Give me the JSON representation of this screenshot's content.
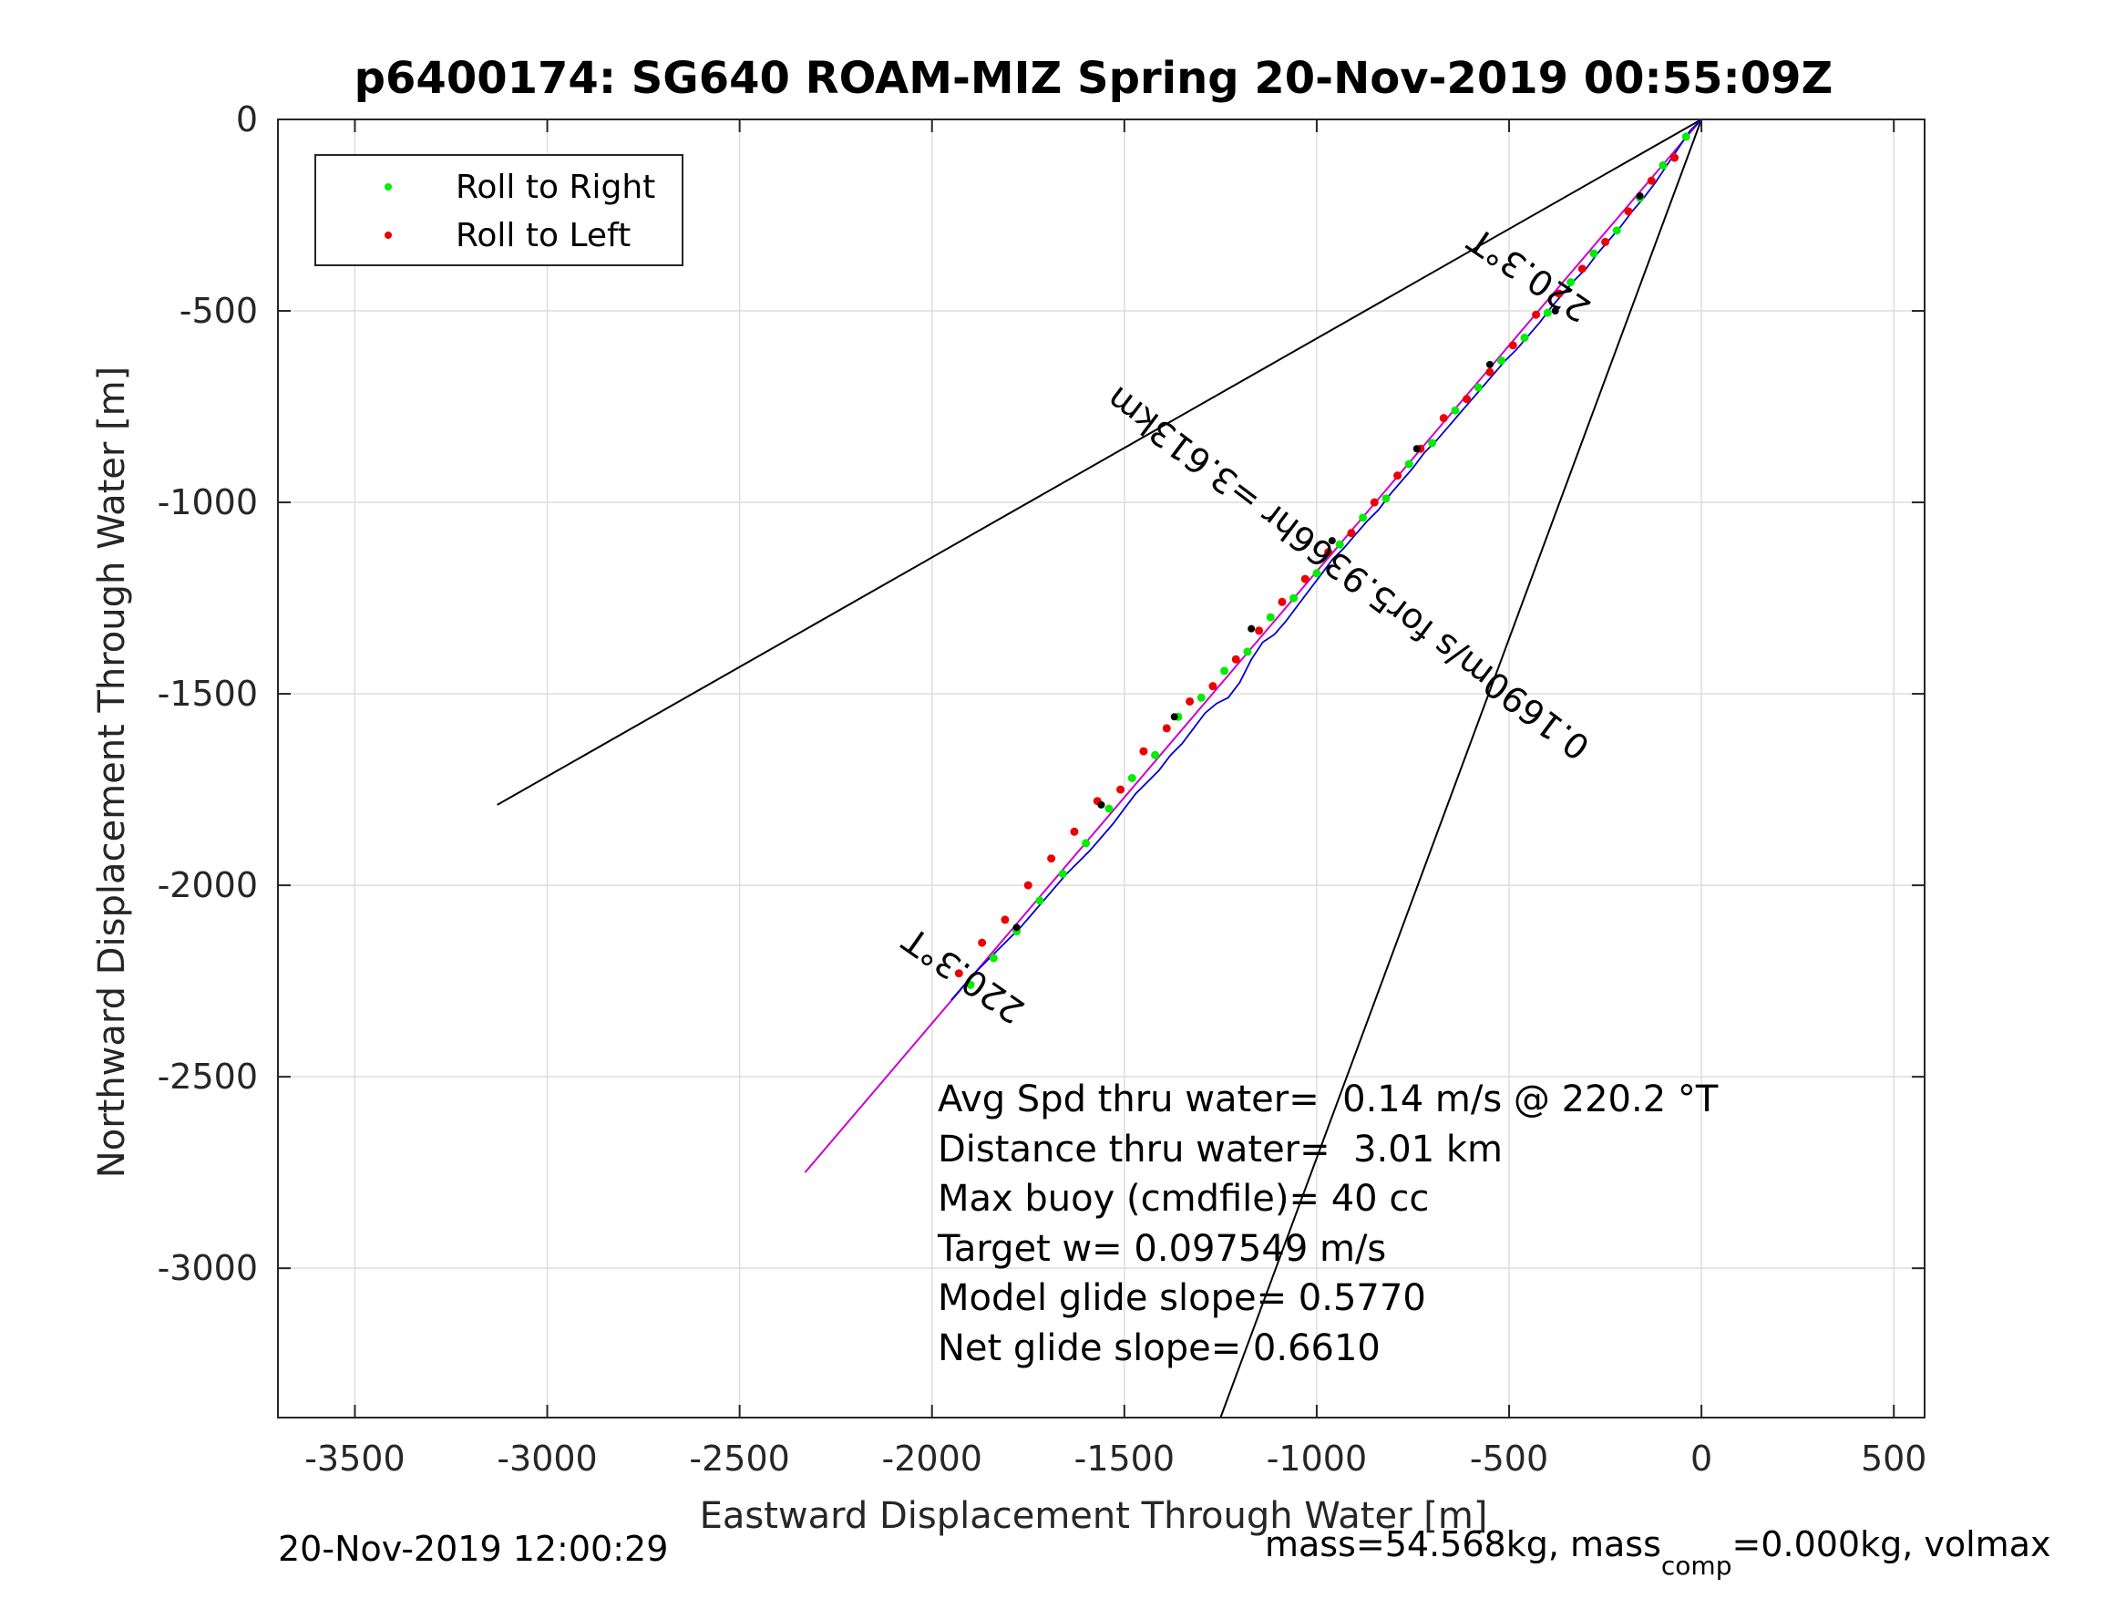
{
  "chart_data": {
    "type": "line",
    "title": "p6400174: SG640 ROAM-MIZ Spring 20-Nov-2019 00:55:09Z",
    "xlabel": "Eastward Displacement Through Water [m]",
    "ylabel": "Northward Displacement Through Water [m]",
    "xlim": [
      -3700,
      580
    ],
    "ylim": [
      -3390,
      0
    ],
    "x_ticks": [
      -3500,
      -3000,
      -2500,
      -2000,
      -1500,
      -1000,
      -500,
      0,
      500
    ],
    "y_ticks": [
      0,
      -500,
      -1000,
      -1500,
      -2000,
      -2500,
      -3000
    ],
    "grid": true,
    "legend": {
      "placement": "top-left",
      "entries": [
        {
          "label": "Roll to Right",
          "color": "#00ee00"
        },
        {
          "label": "Roll to Left",
          "color": "#ee0000"
        }
      ]
    },
    "colors": {
      "cone_lines": "#000000",
      "model_track": "#cc00cc",
      "measured_track": "#0000cc",
      "roll_right": "#00ee00",
      "roll_left": "#ee0000",
      "pitch_markers": "#000000"
    },
    "lines": [
      {
        "role": "cone-upper",
        "x": [
          0,
          -3130
        ],
        "y": [
          0,
          -1790
        ]
      },
      {
        "role": "cone-lower",
        "x": [
          0,
          -1250
        ],
        "y": [
          0,
          -3390
        ]
      },
      {
        "role": "model-track",
        "x": [
          0,
          -2330
        ],
        "y": [
          0,
          -2750
        ]
      }
    ],
    "track": {
      "x": [
        0,
        -30,
        -60,
        -90,
        -120,
        -150,
        -180,
        -210,
        -240,
        -270,
        -300,
        -330,
        -360,
        -390,
        -420,
        -450,
        -480,
        -510,
        -540,
        -570,
        -600,
        -630,
        -660,
        -690,
        -720,
        -750,
        -780,
        -810,
        -840,
        -870,
        -900,
        -930,
        -960,
        -990,
        -1020,
        -1050,
        -1080,
        -1110,
        -1140,
        -1170,
        -1200,
        -1230,
        -1260,
        -1290,
        -1320,
        -1350,
        -1380,
        -1410,
        -1440,
        -1470,
        -1500,
        -1530,
        -1560,
        -1590,
        -1620,
        -1650,
        -1680,
        -1710,
        -1740,
        -1770,
        -1800,
        -1830,
        -1860,
        -1890,
        -1920,
        -1950
      ],
      "y": [
        0,
        -30,
        -75,
        -120,
        -165,
        -205,
        -240,
        -280,
        -315,
        -350,
        -390,
        -420,
        -455,
        -490,
        -530,
        -565,
        -600,
        -630,
        -665,
        -700,
        -735,
        -770,
        -805,
        -840,
        -870,
        -910,
        -945,
        -980,
        -1020,
        -1050,
        -1085,
        -1120,
        -1150,
        -1190,
        -1230,
        -1270,
        -1310,
        -1345,
        -1365,
        -1410,
        -1470,
        -1510,
        -1525,
        -1550,
        -1590,
        -1630,
        -1660,
        -1700,
        -1730,
        -1760,
        -1800,
        -1840,
        -1875,
        -1910,
        -1940,
        -1970,
        -2005,
        -2040,
        -2075,
        -2110,
        -2140,
        -2170,
        -2200,
        -2230,
        -2265,
        -2300
      ]
    },
    "roll_right_points": {
      "x": [
        -40,
        -100,
        -160,
        -220,
        -280,
        -340,
        -400,
        -460,
        -520,
        -580,
        -640,
        -700,
        -760,
        -820,
        -880,
        -940,
        -1000,
        -1060,
        -1120,
        -1180,
        -1240,
        -1300,
        -1360,
        -1420,
        -1480,
        -1540,
        -1600,
        -1660,
        -1720,
        -1780,
        -1840,
        -1900
      ],
      "y": [
        -45,
        -120,
        -205,
        -290,
        -350,
        -425,
        -505,
        -570,
        -630,
        -700,
        -760,
        -845,
        -900,
        -990,
        -1040,
        -1110,
        -1185,
        -1250,
        -1300,
        -1390,
        -1440,
        -1510,
        -1560,
        -1660,
        -1720,
        -1800,
        -1890,
        -1970,
        -2040,
        -2120,
        -2190,
        -2260
      ]
    },
    "roll_left_points": {
      "x": [
        -70,
        -130,
        -190,
        -250,
        -310,
        -370,
        -430,
        -490,
        -550,
        -610,
        -670,
        -730,
        -790,
        -850,
        -910,
        -970,
        -1030,
        -1090,
        -1150,
        -1210,
        -1270,
        -1330,
        -1390,
        -1450,
        -1510,
        -1570,
        -1630,
        -1690,
        -1750,
        -1810,
        -1870,
        -1930
      ],
      "y": [
        -100,
        -160,
        -240,
        -320,
        -390,
        -455,
        -510,
        -590,
        -660,
        -730,
        -780,
        -860,
        -930,
        -1000,
        -1080,
        -1130,
        -1200,
        -1260,
        -1335,
        -1410,
        -1480,
        -1520,
        -1590,
        -1650,
        -1750,
        -1780,
        -1860,
        -1930,
        -2000,
        -2090,
        -2150,
        -2230
      ]
    },
    "pitch_points": {
      "x": [
        -160,
        -380,
        -550,
        -740,
        -960,
        -1170,
        -1370,
        -1560,
        -1780
      ],
      "y": [
        -200,
        -500,
        -640,
        -860,
        -1100,
        -1330,
        -1560,
        -1790,
        -2110
      ]
    },
    "annotations": [
      {
        "text": "220.3°T",
        "x": -430,
        "y": -380,
        "rotate": 214
      },
      {
        "text": "0.1690m/s for5.9366hr =3.613km",
        "x": -900,
        "y": -1160,
        "rotate": 217
      },
      {
        "text": "220.3°T",
        "x": -1900,
        "y": -2210,
        "rotate": 215
      }
    ],
    "stats": [
      "Avg Spd thru water=  0.14 m/s @ 220.2 °T",
      "Distance thru water=  3.01 km",
      "Max buoy (cmdfile)= 40 cc",
      "Target w= 0.097549 m/s",
      "Model glide slope= 0.5770",
      "Net glide slope= 0.6610"
    ],
    "footer_left": "20-Nov-2019 12:00:29",
    "footer_right": {
      "prefix": "mass=54.568kg, mass",
      "subscript": "comp",
      "suffix": "=0.000kg, volmax"
    }
  }
}
